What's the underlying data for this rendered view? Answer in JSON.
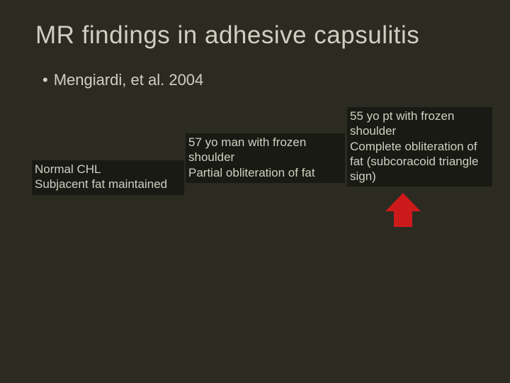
{
  "title": "MR findings in adhesive capsulitis",
  "bullet": {
    "marker": "•",
    "text": "Mengiardi, et al. 2004"
  },
  "captions": {
    "c1": "Normal CHL\nSubjacent fat maintained",
    "c2": "57 yo man with frozen shoulder\nPartial obliteration of fat",
    "c3": "55 yo pt with frozen shoulder\nComplete obliteration of fat (subcoracoid triangle sign)"
  },
  "colors": {
    "background": "#2b2b22",
    "text": "#cfcfc2",
    "caption_bg": "#1a1a14",
    "arrow": "#cc1a1a"
  },
  "arrow_icon_name": "up-arrow"
}
